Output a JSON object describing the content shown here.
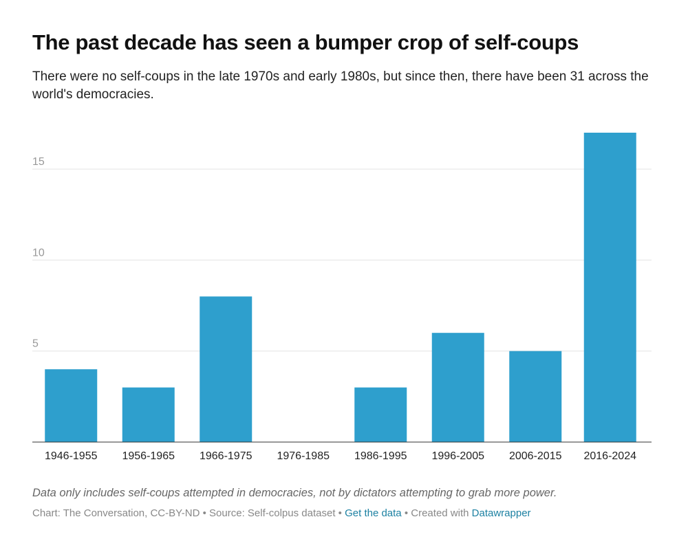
{
  "chart_data": {
    "type": "bar",
    "title": "The past decade has seen a bumper crop of self-coups",
    "subtitle": "There were no self-coups in the late 1970s and early 1980s, but since then, there have been 31 across the world's democracies.",
    "categories": [
      "1946-1955",
      "1956-1965",
      "1966-1975",
      "1976-1985",
      "1986-1995",
      "1996-2005",
      "2006-2015",
      "2016-2024"
    ],
    "values": [
      4,
      3,
      8,
      0,
      3,
      6,
      5,
      17
    ],
    "yticks": [
      "5",
      "10",
      "15"
    ],
    "ylim": [
      0,
      17
    ],
    "grid": true,
    "bar_color": "#2e9fcd"
  },
  "note": "Data only includes self-coups attempted in democracies, not by dictators attempting to grab more power.",
  "footer": {
    "chart_credit": "Chart: The Conversation, CC-BY-ND",
    "separator": "•",
    "source": "Source: Self-colpus dataset",
    "get_data": "Get the data",
    "created_with": "Created with",
    "datawrapper": "Datawrapper"
  }
}
